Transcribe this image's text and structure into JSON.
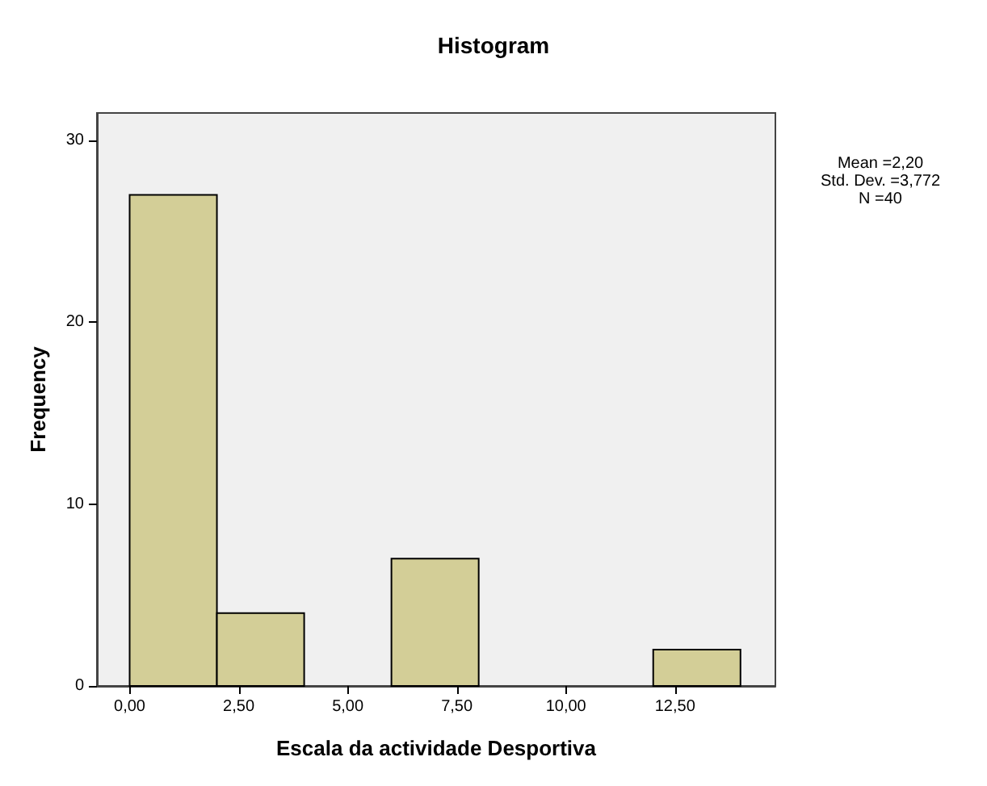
{
  "chart_data": {
    "type": "histogram",
    "title": "Histogram",
    "xlabel": "Escala da actividade Desportiva",
    "ylabel": "Frequency",
    "bins": [
      0,
      2,
      4,
      6,
      8,
      10,
      12,
      14
    ],
    "values": [
      27,
      4,
      0,
      7,
      0,
      0,
      2
    ],
    "color": "#d3ce97",
    "xlim": [
      -0.75,
      14.8
    ],
    "xticks": [
      {
        "value": 0,
        "label": "0,00"
      },
      {
        "value": 2.5,
        "label": "2,50"
      },
      {
        "value": 5,
        "label": "5,00"
      },
      {
        "value": 7.5,
        "label": "7,50"
      },
      {
        "value": 10,
        "label": "10,00"
      },
      {
        "value": 12.5,
        "label": "12,50"
      }
    ],
    "ylim": [
      0,
      31.5
    ],
    "yticks": [
      0,
      10,
      20,
      30
    ],
    "grid": false,
    "annotations": [
      "Mean =2,20\nStd. Dev. =3,772\nN =40"
    ]
  }
}
